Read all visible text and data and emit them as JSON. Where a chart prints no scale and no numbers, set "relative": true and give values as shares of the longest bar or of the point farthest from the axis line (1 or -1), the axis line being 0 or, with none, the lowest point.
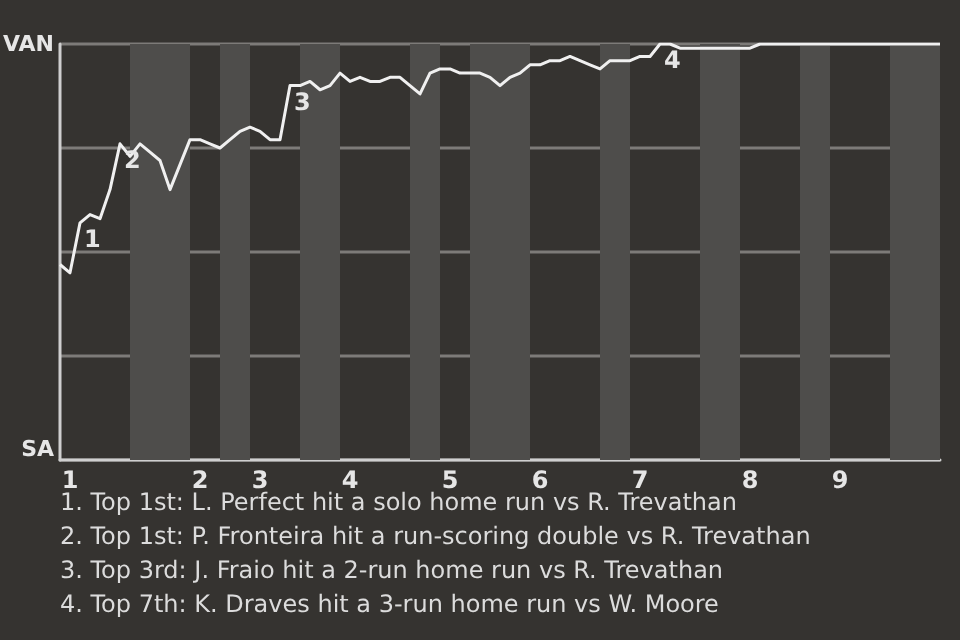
{
  "chart_data": {
    "type": "line",
    "relative": true,
    "categories": [
      null,
      "1",
      null,
      null,
      null,
      null,
      null,
      null,
      null,
      null,
      null,
      null,
      null,
      null,
      "2",
      null,
      null,
      null,
      null,
      null,
      "3",
      null,
      null,
      null,
      null,
      null,
      null,
      null,
      null,
      "4",
      null,
      null,
      null,
      null,
      null,
      null,
      null,
      null,
      null,
      "5",
      null,
      null,
      null,
      null,
      null,
      null,
      null,
      null,
      "6",
      null,
      null,
      null,
      null,
      null,
      null,
      null,
      null,
      null,
      "7",
      null,
      null,
      null,
      null,
      null,
      null,
      null,
      null,
      null,
      null,
      "8",
      null,
      null,
      null,
      null,
      null,
      null,
      null,
      null,
      "9",
      null,
      null,
      null,
      null,
      null,
      null,
      null,
      null,
      null,
      null
    ],
    "series": [
      {
        "color": "#f0f0f0",
        "values": [
          0.47,
          0.45,
          0.57,
          0.59,
          0.58,
          0.65,
          0.76,
          0.73,
          0.76,
          0.74,
          0.72,
          0.65,
          0.71,
          0.77,
          0.77,
          0.76,
          0.75,
          0.77,
          0.79,
          0.8,
          0.79,
          0.77,
          0.77,
          0.9,
          0.9,
          0.91,
          0.89,
          0.9,
          0.93,
          0.91,
          0.92,
          0.91,
          0.91,
          0.92,
          0.92,
          0.9,
          0.88,
          0.93,
          0.94,
          0.94,
          0.93,
          0.93,
          0.93,
          0.92,
          0.9,
          0.92,
          0.93,
          0.95,
          0.95,
          0.96,
          0.96,
          0.97,
          0.96,
          0.95,
          0.94,
          0.96,
          0.96,
          0.96,
          0.97,
          0.97,
          1,
          1,
          0.99,
          0.99,
          0.99,
          0.99,
          0.99,
          0.99,
          0.99,
          0.99,
          1,
          1,
          1,
          1,
          1,
          1,
          1,
          1,
          1,
          1,
          1,
          1,
          1,
          1,
          1,
          1,
          1,
          1,
          1
        ]
      }
    ],
    "grid": "y",
    "marker": "none",
    "annotations": [
      "VAN",
      "SA",
      {
        "text": "1",
        "y": 0.57
      },
      {
        "text": "2",
        "y": 0.76
      },
      {
        "text": "3",
        "y": 0.9
      },
      {
        "text": "4",
        "y": 1
      },
      "1. Top 1st: L. Perfect hit a solo home run vs R. Trevathan",
      "2. Top 1st: P. Fronteira hit a run-scoring double vs R. Trevathan",
      "3. Top 3rd: J. Fraio hit a 2-run home run vs R. Trevathan",
      "4. Top 7th: K. Draves hit a 3-run home run vs W. Moore"
    ]
  }
}
